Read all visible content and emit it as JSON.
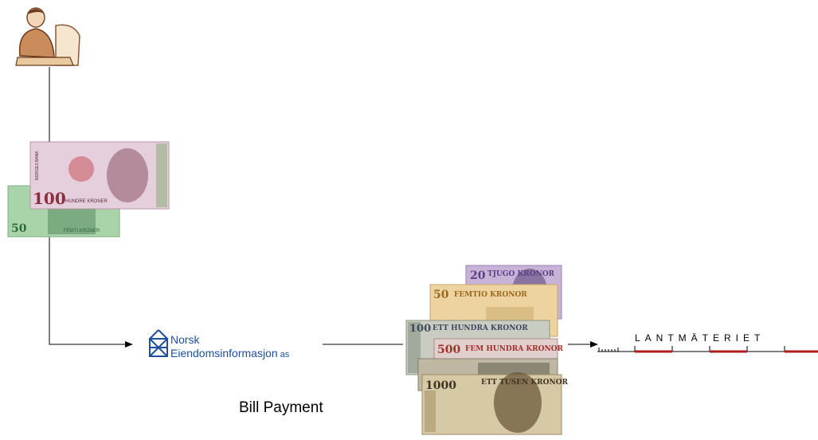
{
  "norwegian_notes": [
    {
      "denomination": "100",
      "words": "HUNDRE KRONER",
      "bank": "NORGES BANK"
    },
    {
      "denomination": "50",
      "words": "FEMTI KRONER"
    }
  ],
  "company_logo": {
    "line1": "Norsk",
    "line2": "Eiendomsinformasjon",
    "suffix": "as"
  },
  "swedish_notes": [
    {
      "denomination": "20",
      "words": "TJUGO KRONOR"
    },
    {
      "denomination": "50",
      "words": "FEMTIO KRONOR"
    },
    {
      "denomination": "100",
      "words": "ETT HUNDRA KRONOR"
    },
    {
      "denomination": "500",
      "words": "FEM HUNDRA KRONOR"
    },
    {
      "denomination": "1000",
      "words": "ETT TUSEN KRONOR"
    }
  ],
  "label": "Bill Payment",
  "destination_logo": "LANTMÄTERIET"
}
